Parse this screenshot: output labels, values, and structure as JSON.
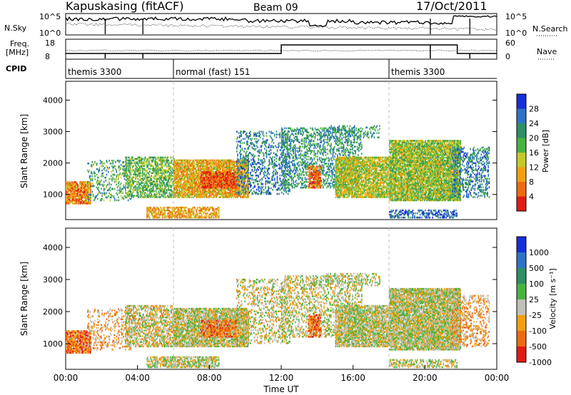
{
  "header": {
    "station": "Kapuskasing (fitACF)",
    "beam": "Beam 09",
    "date": "17/Oct/2011"
  },
  "nsky": {
    "label": "N.Sky",
    "right_label": "N.Search",
    "ticks_left": [
      "10^5",
      "10^0"
    ],
    "ticks_right": [
      "10^5",
      "10^0"
    ]
  },
  "freq": {
    "label_line1": "Freq.",
    "label_line2": "[MHz]",
    "ticks_left": [
      "18",
      "8"
    ],
    "right_label": "Nave",
    "ticks_right": [
      "60",
      "0"
    ]
  },
  "cpid": {
    "label": "CPID",
    "segments": [
      {
        "start_hour": 0,
        "name": "themis 3300"
      },
      {
        "start_hour": 6,
        "name": "normal (fast) 151"
      },
      {
        "start_hour": 18,
        "name": "themis 3300"
      }
    ]
  },
  "colors": {
    "power": [
      "#1530d8",
      "#2e74c4",
      "#2f8f66",
      "#4ab340",
      "#c4c92a",
      "#f0a010",
      "#ee6a10",
      "#e01c12"
    ],
    "velocity": [
      "#1530d8",
      "#2e74c4",
      "#2f8f66",
      "#4ab340",
      "#c0c0b8",
      "#f0a010",
      "#ee6a10",
      "#e01c12"
    ]
  },
  "chart_data": [
    {
      "type": "heatmap",
      "id": "power",
      "xlabel": "",
      "ylabel": "Slant Range [km]",
      "x_range_hours": [
        0,
        24
      ],
      "ylim": [
        200,
        4600
      ],
      "yticks": [
        "1000",
        "2000",
        "3000",
        "4000"
      ],
      "colorbar": {
        "label": "Power [dB]",
        "ticks": [
          "4",
          "8",
          "12",
          "16",
          "20",
          "24",
          "28"
        ]
      }
    },
    {
      "type": "heatmap",
      "id": "velocity",
      "xlabel": "Time UT",
      "ylabel": "Slant Range [km]",
      "x_range_hours": [
        0,
        24
      ],
      "ylim": [
        200,
        4600
      ],
      "yticks": [
        "1000",
        "2000",
        "3000",
        "4000"
      ],
      "xticks": [
        "00:00",
        "04:00",
        "08:00",
        "12:00",
        "16:00",
        "20:00",
        "00:00"
      ],
      "colorbar": {
        "label": "Velocity [m s⁻¹]",
        "ticks": [
          "1000",
          "500",
          "100",
          "25",
          "-25",
          "-100",
          "-500",
          "-1000"
        ]
      }
    }
  ]
}
